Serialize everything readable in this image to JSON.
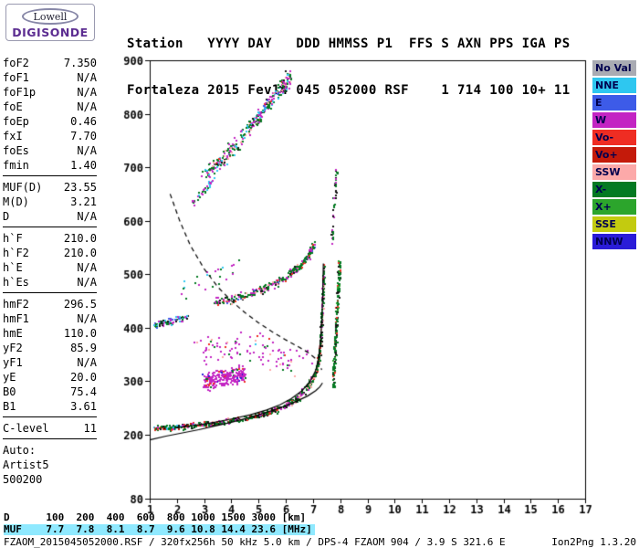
{
  "logo": {
    "top": "Lowell",
    "bottom": "DIGISONDE"
  },
  "header": {
    "line1": "Station   YYYY DAY   DDD HMMSS P1  FFS S AXN PPS IGA PS",
    "line2": "Fortaleza 2015 Fev14 045 052000 RSF    1 714 100 10+ 11"
  },
  "params": {
    "groups": [
      [
        {
          "l": "foF2",
          "v": "7.350"
        },
        {
          "l": "foF1",
          "v": "N/A"
        },
        {
          "l": "foF1p",
          "v": "N/A"
        },
        {
          "l": "foE",
          "v": "N/A"
        },
        {
          "l": "foEp",
          "v": "0.46"
        },
        {
          "l": "fxI",
          "v": "7.70"
        },
        {
          "l": "foEs",
          "v": "N/A"
        },
        {
          "l": "fmin",
          "v": "1.40"
        }
      ],
      [
        {
          "l": "MUF(D)",
          "v": "23.55"
        },
        {
          "l": "M(D)",
          "v": "3.21"
        },
        {
          "l": "D",
          "v": "N/A"
        }
      ],
      [
        {
          "l": "h`F",
          "v": "210.0"
        },
        {
          "l": "h`F2",
          "v": "210.0"
        },
        {
          "l": "h`E",
          "v": "N/A"
        },
        {
          "l": "h`Es",
          "v": "N/A"
        }
      ],
      [
        {
          "l": "hmF2",
          "v": "296.5"
        },
        {
          "l": "hmF1",
          "v": "N/A"
        },
        {
          "l": "hmE",
          "v": "110.0"
        },
        {
          "l": "yF2",
          "v": "85.9"
        },
        {
          "l": "yF1",
          "v": "N/A"
        },
        {
          "l": "yE",
          "v": "20.0"
        },
        {
          "l": "B0",
          "v": "75.4"
        },
        {
          "l": "B1",
          "v": "3.61"
        }
      ],
      [
        {
          "l": "C-level",
          "v": "11"
        }
      ]
    ],
    "footer": [
      "Auto:",
      "Artist5",
      "500200"
    ]
  },
  "legend": {
    "text_color": "#00004E",
    "items": [
      {
        "label": "No Val",
        "key": "noval"
      },
      {
        "label": "NNE",
        "key": "nne"
      },
      {
        "label": "E",
        "key": "e"
      },
      {
        "label": "W",
        "key": "w"
      },
      {
        "label": "Vo-",
        "key": "vom"
      },
      {
        "label": "Vo+",
        "key": "vop"
      },
      {
        "label": "SSW",
        "key": "ssw"
      },
      {
        "label": "X-",
        "key": "xm"
      },
      {
        "label": "X+",
        "key": "xp"
      },
      {
        "label": "SSE",
        "key": "sse"
      },
      {
        "label": "NNW",
        "key": "nnw"
      }
    ]
  },
  "footer_table": {
    "d_row": "D      100  200  400  600  800 1000 1500 3000 [km]",
    "muf_row": "MUF    7.7  7.8  8.1  8.7  9.6 10.8 14.4 23.6 [MHz]",
    "muf_bg": "#8FE9FF",
    "d_values": [
      100,
      200,
      400,
      600,
      800,
      1000,
      1500,
      3000
    ],
    "muf_values": [
      7.7,
      7.8,
      8.1,
      8.7,
      9.6,
      10.8,
      14.4,
      23.6
    ]
  },
  "status": {
    "left": "FZAOM_2015045052000.RSF / 320fx256h 50 kHz 5.0 km / DPS-4 FZAOM 904 / 3.9 S 321.6 E",
    "right": "Ion2Png 1.3.20"
  },
  "chart_data": {
    "type": "scatter",
    "title": "Fortaleza RSF ionogram 2015 Fev14 045 052000",
    "x_unit": "MHz",
    "y_unit": "km",
    "xlim": [
      1,
      17
    ],
    "ylim": [
      80,
      900
    ],
    "x_ticks": [
      1,
      2,
      3,
      4,
      5,
      6,
      7,
      8,
      9,
      10,
      11,
      12,
      13,
      14,
      15,
      16,
      17
    ],
    "y_ticks": [
      900,
      800,
      700,
      600,
      500,
      400,
      300,
      200,
      80
    ],
    "grid": false,
    "legend_position": "right",
    "palette": {
      "noval": "#A9ABB3",
      "nne": "#2EC7F0",
      "e": "#3D5BE8",
      "w": "#C324C3",
      "vom": "#EF2D23",
      "vop": "#C41A0A",
      "ssw": "#FCA9A9",
      "xm": "#047A22",
      "xp": "#2CA52C",
      "sse": "#C3CB0F",
      "nnw": "#2A1CD8",
      "black": "#141414"
    },
    "clusters": [
      {
        "name": "f-trace-1st-order-low",
        "anchors": [
          [
            1.15,
            212
          ],
          [
            1.9,
            215
          ],
          [
            2.75,
            218
          ]
        ],
        "n": 120,
        "jf": 0.1,
        "jh": 6,
        "mix": [
          [
            "xm",
            0.42
          ],
          [
            "black",
            0.2
          ],
          [
            "vom",
            0.12
          ],
          [
            "w",
            0.1
          ],
          [
            "vop",
            0.08
          ],
          [
            "nne",
            0.08
          ]
        ]
      },
      {
        "name": "f-trace-1st-order-mid",
        "anchors": [
          [
            2.75,
            219
          ],
          [
            3.6,
            224
          ],
          [
            4.4,
            230
          ],
          [
            5.0,
            237
          ],
          [
            5.5,
            245
          ],
          [
            6.0,
            256
          ],
          [
            6.4,
            268
          ]
        ],
        "n": 280,
        "jf": 0.09,
        "jh": 6,
        "mix": [
          [
            "xm",
            0.5
          ],
          [
            "black",
            0.18
          ],
          [
            "w",
            0.12
          ],
          [
            "ssw",
            0.08
          ],
          [
            "vom",
            0.07
          ],
          [
            "vop",
            0.05
          ]
        ]
      },
      {
        "name": "f-trace-1st-order-cusp",
        "anchors": [
          [
            6.4,
            268
          ],
          [
            6.8,
            291
          ],
          [
            7.05,
            312
          ],
          [
            7.15,
            330
          ],
          [
            7.22,
            352
          ],
          [
            7.28,
            388
          ],
          [
            7.32,
            432
          ],
          [
            7.35,
            478
          ],
          [
            7.37,
            512
          ]
        ],
        "n": 320,
        "jf": 0.05,
        "jh": 9,
        "mix": [
          [
            "xm",
            0.52
          ],
          [
            "black",
            0.14
          ],
          [
            "ssw",
            0.14
          ],
          [
            "w",
            0.12
          ],
          [
            "vom",
            0.08
          ]
        ]
      },
      {
        "name": "x-trace-cusp-column",
        "anchors": [
          [
            7.72,
            292
          ],
          [
            7.78,
            348
          ],
          [
            7.84,
            408
          ],
          [
            7.9,
            468
          ],
          [
            7.95,
            520
          ]
        ],
        "n": 210,
        "jf": 0.06,
        "jh": 11,
        "mix": [
          [
            "xm",
            0.58
          ],
          [
            "black",
            0.18
          ],
          [
            "xp",
            0.12
          ],
          [
            "vom",
            0.12
          ]
        ]
      },
      {
        "name": "x-trace-2nd-order-column",
        "anchors": [
          [
            7.68,
            562
          ],
          [
            7.74,
            618
          ],
          [
            7.8,
            668
          ],
          [
            7.84,
            698
          ]
        ],
        "n": 48,
        "jf": 0.05,
        "jh": 9,
        "mix": [
          [
            "xm",
            0.55
          ],
          [
            "black",
            0.25
          ],
          [
            "w",
            0.2
          ]
        ]
      },
      {
        "name": "oblique-w-cloud-dense",
        "anchors": [
          [
            2.95,
            298
          ],
          [
            3.5,
            306
          ],
          [
            4.0,
            311
          ],
          [
            4.45,
            314
          ]
        ],
        "n": 240,
        "jf": 0.11,
        "jh": 19,
        "mix": [
          [
            "w",
            0.82
          ],
          [
            "vom",
            0.06
          ],
          [
            "xm",
            0.07
          ],
          [
            "nnw",
            0.05
          ]
        ]
      },
      {
        "name": "oblique-w-cloud-sparse",
        "anchors": [
          [
            2.9,
            355
          ],
          [
            3.8,
            372
          ],
          [
            4.8,
            362
          ],
          [
            5.8,
            345
          ],
          [
            6.7,
            330
          ]
        ],
        "n": 100,
        "jf": 0.45,
        "jh": 32,
        "mix": [
          [
            "w",
            0.6
          ],
          [
            "ssw",
            0.14
          ],
          [
            "xm",
            0.14
          ],
          [
            "vom",
            0.07
          ],
          [
            "nne",
            0.05
          ]
        ]
      },
      {
        "name": "f-trace-2nd-order-low",
        "anchors": [
          [
            1.15,
            405
          ],
          [
            1.7,
            413
          ],
          [
            2.35,
            422
          ]
        ],
        "n": 85,
        "jf": 0.09,
        "jh": 8,
        "mix": [
          [
            "xm",
            0.32
          ],
          [
            "nne",
            0.28
          ],
          [
            "w",
            0.16
          ],
          [
            "e",
            0.12
          ],
          [
            "black",
            0.12
          ]
        ]
      },
      {
        "name": "f-trace-2nd-order",
        "anchors": [
          [
            3.35,
            448
          ],
          [
            4.0,
            455
          ],
          [
            4.6,
            463
          ],
          [
            5.2,
            474
          ],
          [
            5.7,
            486
          ],
          [
            6.1,
            500
          ],
          [
            6.5,
            517
          ],
          [
            6.8,
            536
          ],
          [
            7.0,
            556
          ]
        ],
        "n": 300,
        "jf": 0.07,
        "jh": 9,
        "mix": [
          [
            "xm",
            0.4
          ],
          [
            "w",
            0.3
          ],
          [
            "ssw",
            0.1
          ],
          [
            "black",
            0.08
          ],
          [
            "vom",
            0.06
          ],
          [
            "e",
            0.06
          ]
        ]
      },
      {
        "name": "f-trace-3rd-order",
        "anchors": [
          [
            2.95,
            688
          ],
          [
            3.5,
            710
          ],
          [
            4.0,
            736
          ],
          [
            4.5,
            766
          ],
          [
            5.0,
            798
          ],
          [
            5.5,
            830
          ],
          [
            5.9,
            856
          ],
          [
            6.15,
            872
          ]
        ],
        "n": 340,
        "jf": 0.09,
        "jh": 18,
        "mix": [
          [
            "xm",
            0.34
          ],
          [
            "w",
            0.26
          ],
          [
            "nne",
            0.13
          ],
          [
            "ssw",
            0.1
          ],
          [
            "black",
            0.07
          ],
          [
            "e",
            0.05
          ],
          [
            "vom",
            0.05
          ]
        ]
      },
      {
        "name": "f-trace-3rd-order-left",
        "anchors": [
          [
            2.55,
            636
          ],
          [
            2.9,
            655
          ],
          [
            3.3,
            676
          ]
        ],
        "n": 36,
        "jf": 0.09,
        "jh": 10,
        "mix": [
          [
            "xm",
            0.4
          ],
          [
            "w",
            0.3
          ],
          [
            "nne",
            0.3
          ]
        ]
      },
      {
        "name": "stray-echoes-mid",
        "anchors": [
          [
            2.2,
            470
          ],
          [
            3.2,
            500
          ],
          [
            4.0,
            520
          ]
        ],
        "n": 25,
        "jf": 0.4,
        "jh": 25,
        "mix": [
          [
            "xm",
            0.4
          ],
          [
            "w",
            0.3
          ],
          [
            "nne",
            0.15
          ],
          [
            "black",
            0.15
          ]
        ]
      }
    ],
    "curves": [
      {
        "name": "muf-transmission-curve",
        "style": "dashed",
        "points": [
          [
            1.75,
            650
          ],
          [
            2.1,
            600
          ],
          [
            2.5,
            553
          ],
          [
            3.0,
            510
          ],
          [
            3.5,
            476
          ],
          [
            4.0,
            450
          ],
          [
            4.5,
            428
          ],
          [
            5.0,
            409
          ],
          [
            5.5,
            392
          ],
          [
            6.0,
            377
          ],
          [
            6.5,
            363
          ],
          [
            6.8,
            354
          ],
          [
            7.1,
            342
          ],
          [
            7.25,
            330
          ],
          [
            7.32,
            321
          ]
        ]
      },
      {
        "name": "true-height-profile",
        "style": "solid",
        "points": [
          [
            1.0,
            190
          ],
          [
            1.6,
            197
          ],
          [
            2.2,
            203
          ],
          [
            2.8,
            209
          ],
          [
            3.4,
            216
          ],
          [
            4.0,
            223
          ],
          [
            4.6,
            231
          ],
          [
            5.2,
            240
          ],
          [
            5.8,
            250
          ],
          [
            6.3,
            260
          ],
          [
            6.8,
            272
          ],
          [
            7.1,
            282
          ],
          [
            7.25,
            289
          ],
          [
            7.35,
            296.5
          ]
        ]
      },
      {
        "name": "fitted-virtual-trace",
        "style": "solid",
        "points": [
          [
            1.9,
            212
          ],
          [
            2.6,
            217
          ],
          [
            3.3,
            222
          ],
          [
            4.0,
            229
          ],
          [
            4.7,
            237
          ],
          [
            5.3,
            246
          ],
          [
            5.8,
            256
          ],
          [
            6.2,
            267
          ],
          [
            6.6,
            282
          ],
          [
            6.9,
            300
          ],
          [
            7.1,
            320
          ],
          [
            7.2,
            342
          ],
          [
            7.28,
            375
          ],
          [
            7.33,
            420
          ],
          [
            7.36,
            465
          ],
          [
            7.375,
            505
          ],
          [
            7.38,
            520
          ]
        ]
      }
    ]
  }
}
